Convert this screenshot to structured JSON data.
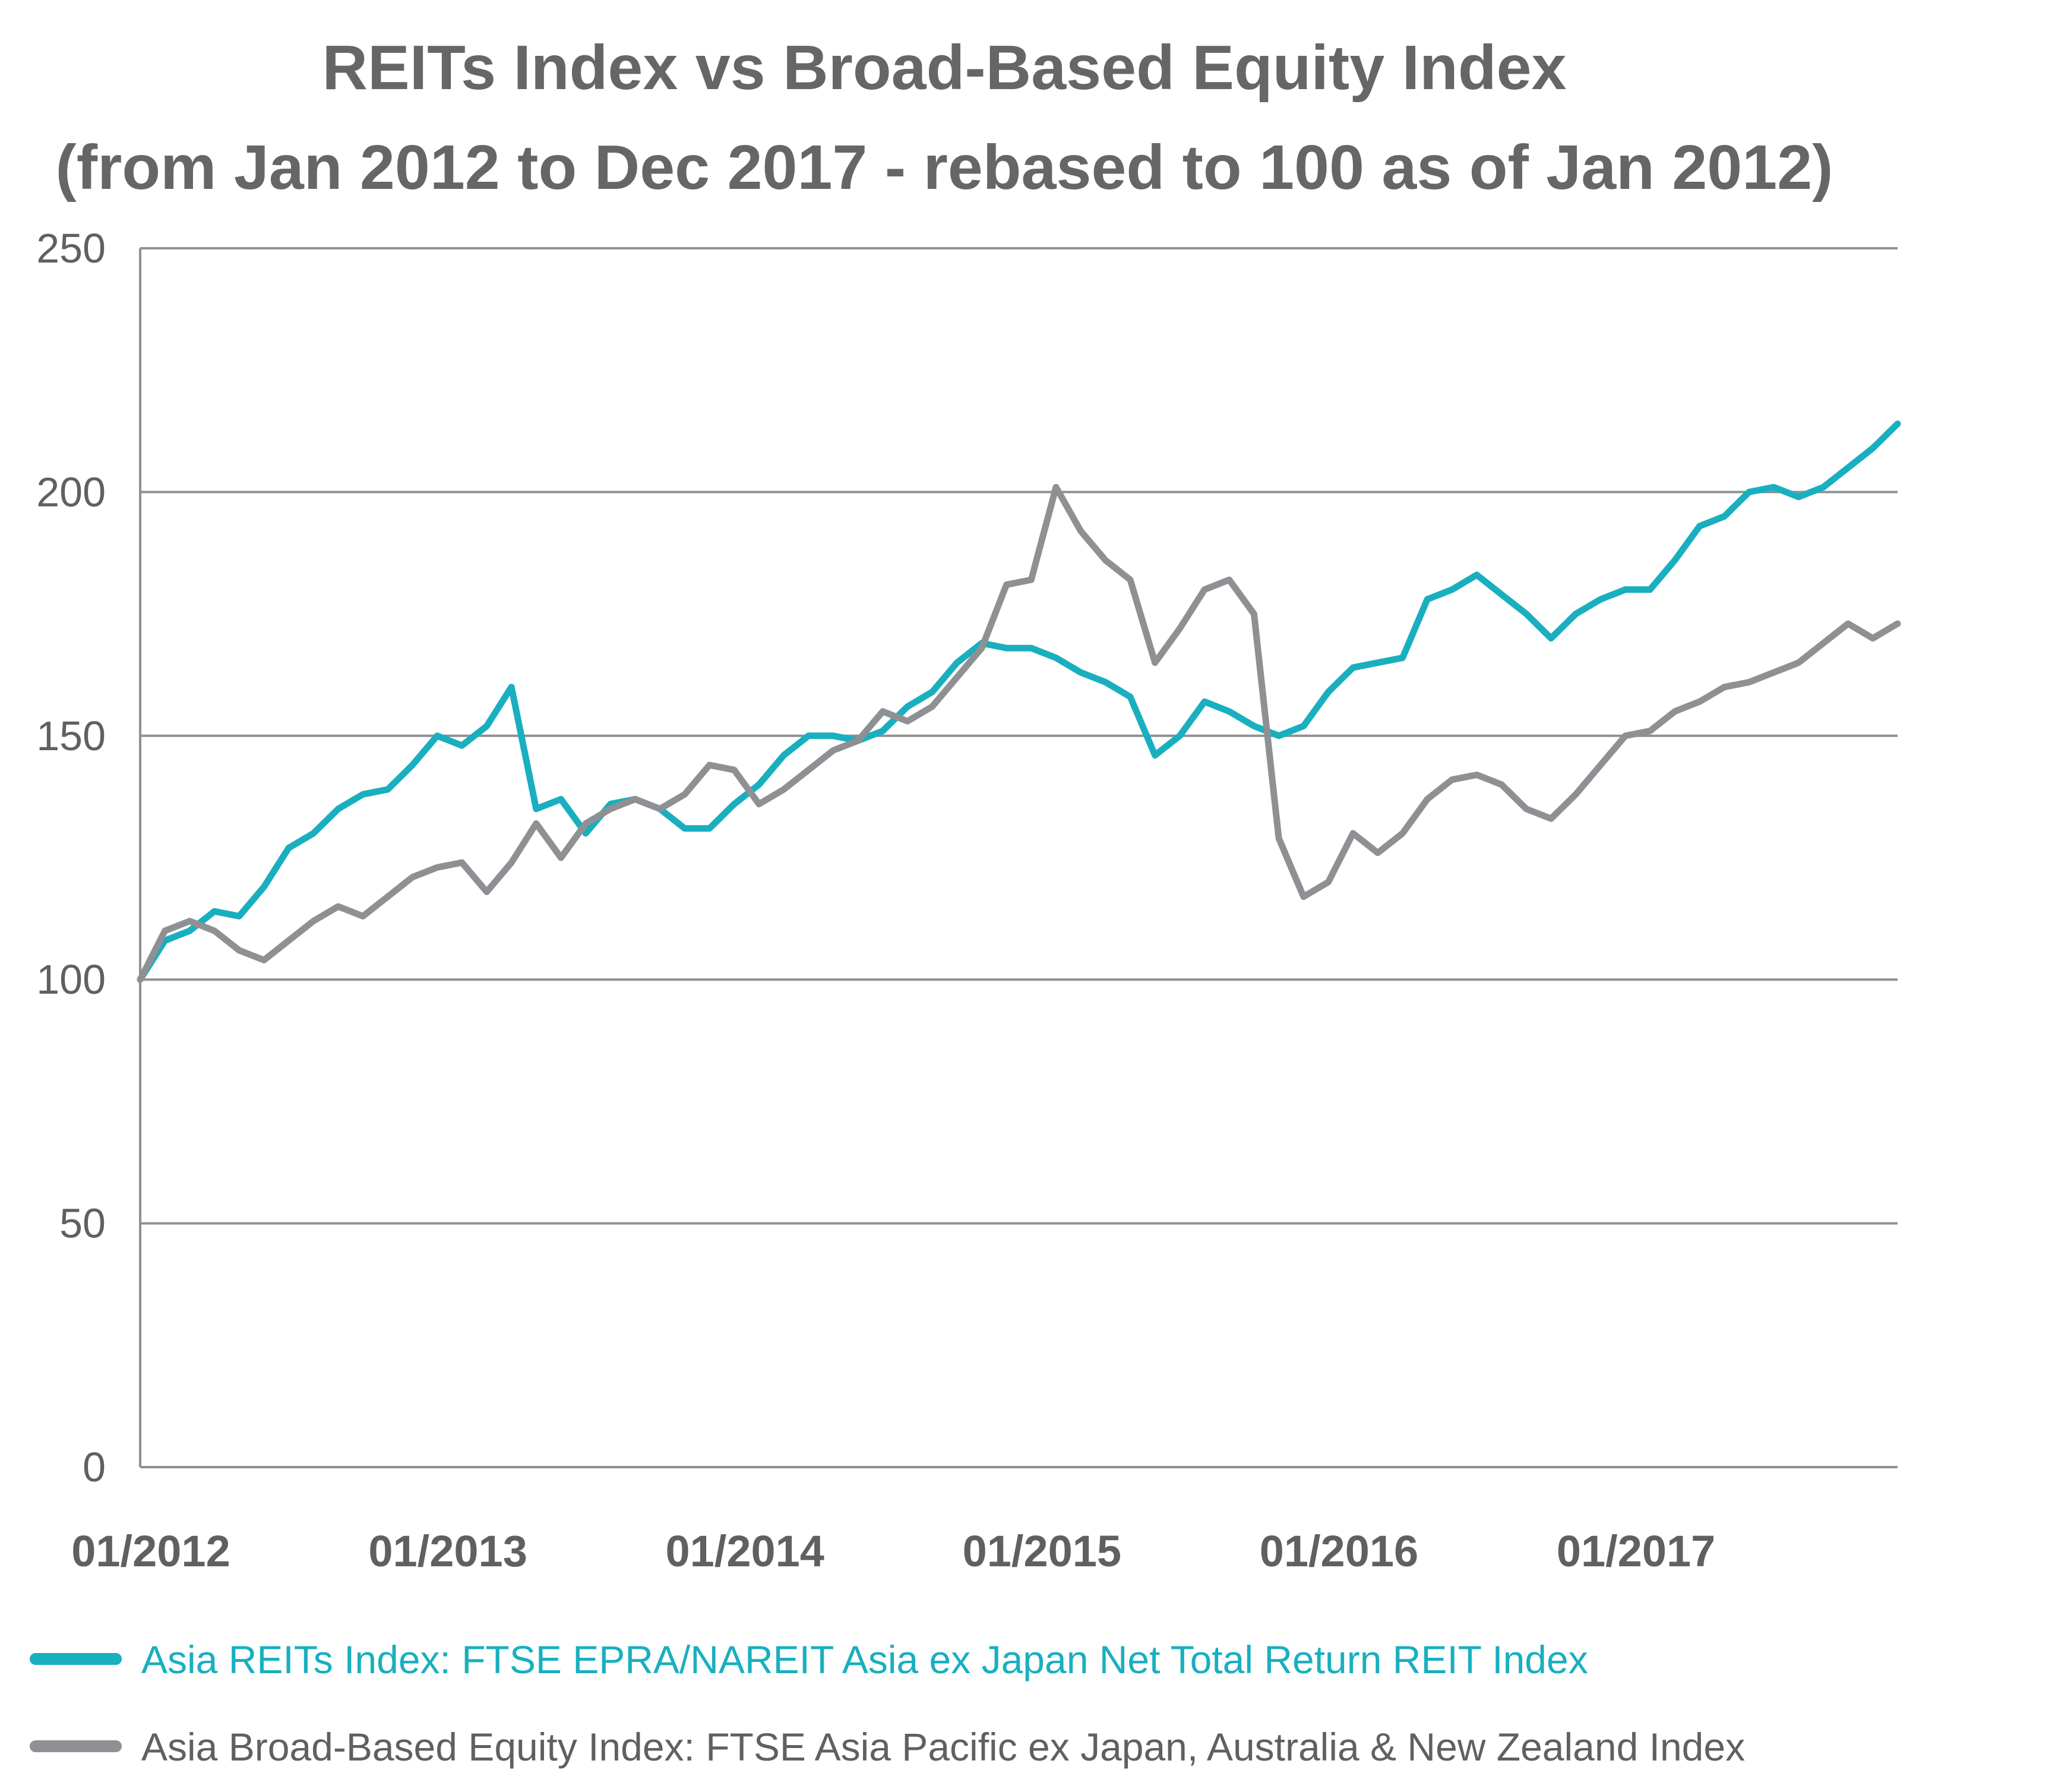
{
  "chart_data": {
    "type": "line",
    "title": "REITs Index vs Broad-Based Equity Index",
    "subtitle": "(from Jan 2012 to Dec 2017 - rebased to 100 as of Jan 2012)",
    "xlabel": "",
    "ylabel": "",
    "ylim": [
      0,
      250
    ],
    "yticks": [
      "0",
      "50",
      "100",
      "150",
      "200",
      "250"
    ],
    "xticks": [
      "01/2012",
      "01/2013",
      "01/2014",
      "01/2015",
      "01/2016",
      "01/2017"
    ],
    "xlim": [
      "2012-01",
      "2017-12"
    ],
    "grid": "horizontal",
    "legend_position": "bottom",
    "x": [
      "2012-01",
      "2012-02",
      "2012-03",
      "2012-04",
      "2012-05",
      "2012-06",
      "2012-07",
      "2012-08",
      "2012-09",
      "2012-10",
      "2012-11",
      "2012-12",
      "2013-01",
      "2013-02",
      "2013-03",
      "2013-04",
      "2013-05",
      "2013-06",
      "2013-07",
      "2013-08",
      "2013-09",
      "2013-10",
      "2013-11",
      "2013-12",
      "2014-01",
      "2014-02",
      "2014-03",
      "2014-04",
      "2014-05",
      "2014-06",
      "2014-07",
      "2014-08",
      "2014-09",
      "2014-10",
      "2014-11",
      "2014-12",
      "2015-01",
      "2015-02",
      "2015-03",
      "2015-04",
      "2015-05",
      "2015-06",
      "2015-07",
      "2015-08",
      "2015-09",
      "2015-10",
      "2015-11",
      "2015-12",
      "2016-01",
      "2016-02",
      "2016-03",
      "2016-04",
      "2016-05",
      "2016-06",
      "2016-07",
      "2016-08",
      "2016-09",
      "2016-10",
      "2016-11",
      "2016-12",
      "2017-01",
      "2017-02",
      "2017-03",
      "2017-04",
      "2017-05",
      "2017-06",
      "2017-07",
      "2017-08",
      "2017-09",
      "2017-10",
      "2017-11",
      "2017-12"
    ],
    "series": [
      {
        "name": "Asia REITs Index: FTSE EPRA/NAREIT Asia ex Japan Net Total Return REIT Index",
        "color": "#19afbf",
        "values": [
          100,
          108,
          110,
          114,
          113,
          119,
          127,
          130,
          135,
          138,
          139,
          144,
          150,
          148,
          152,
          160,
          135,
          137,
          130,
          136,
          137,
          135,
          131,
          131,
          136,
          140,
          146,
          150,
          150,
          149,
          151,
          156,
          159,
          165,
          169,
          168,
          168,
          166,
          163,
          161,
          158,
          146,
          150,
          157,
          155,
          152,
          150,
          152,
          159,
          164,
          165,
          166,
          178,
          180,
          183,
          179,
          175,
          170,
          175,
          178,
          180,
          180,
          186,
          193,
          195,
          200,
          201,
          199,
          201,
          205,
          209,
          214
        ]
      },
      {
        "name": "Asia Broad-Based Equity Index: FTSE Asia Pacific ex Japan, Australia & New Zealand Index",
        "color": "#8f9093",
        "values": [
          100,
          110,
          112,
          110,
          106,
          104,
          108,
          112,
          115,
          113,
          117,
          121,
          123,
          124,
          118,
          124,
          132,
          125,
          132,
          135,
          137,
          135,
          138,
          144,
          143,
          136,
          139,
          143,
          147,
          149,
          155,
          153,
          156,
          162,
          168,
          181,
          182,
          201,
          192,
          186,
          182,
          165,
          172,
          180,
          182,
          175,
          129,
          117,
          120,
          130,
          126,
          130,
          137,
          141,
          142,
          140,
          135,
          133,
          138,
          144,
          150,
          151,
          155,
          157,
          160,
          161,
          163,
          165,
          169,
          173,
          170,
          173
        ]
      }
    ]
  }
}
